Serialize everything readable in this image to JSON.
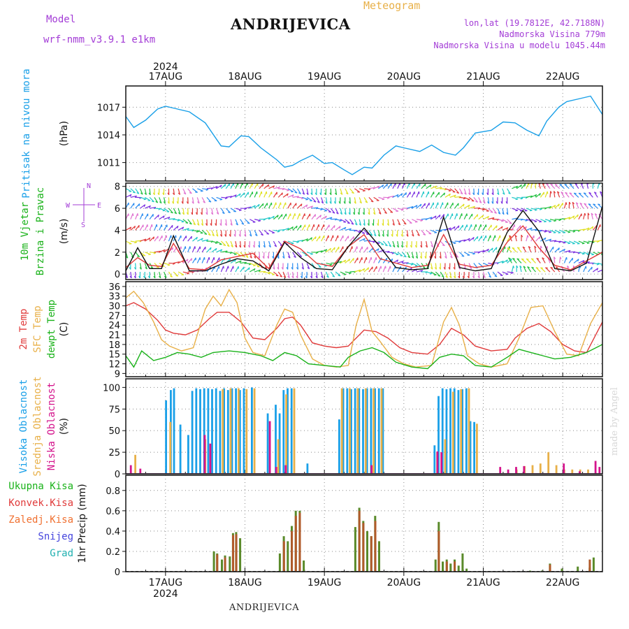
{
  "header": {
    "model_label": "Model",
    "model_name": "wrf-nmm_v3.9.1 e1km",
    "station": "ANDRIJEVICA",
    "meteogram_title": "Meteogram",
    "coords": "lon,lat (19.7812E, 42.7188N)",
    "altitude": "Nadmorska Visina 779m",
    "model_altitude": "Nadmorska Visina u modelu 1045.44m"
  },
  "footer": {
    "station": "ANDRIJEVICA",
    "credit": "made by Angel"
  },
  "time_axis": {
    "year": "2024",
    "day_labels": [
      "17AUG",
      "18AUG",
      "19AUG",
      "20AUG",
      "21AUG",
      "22AUG"
    ],
    "start_day": 16.5,
    "end_day": 22.5
  },
  "chart_data": [
    {
      "type": "line",
      "id": "pressure",
      "ylabel": "(hPa)",
      "side_labels": [
        {
          "text": "Pritisak na nivou mora",
          "color": "#1aa0e8"
        }
      ],
      "ylim": [
        1009,
        1019.3
      ],
      "yticks": [
        "1011",
        "1014",
        "1017"
      ],
      "series": [
        {
          "color": "#1aa0e8",
          "x": [
            16.5,
            16.6,
            16.75,
            16.9,
            17.0,
            17.15,
            17.3,
            17.5,
            17.7,
            17.8,
            17.95,
            18.05,
            18.2,
            18.4,
            18.5,
            18.6,
            18.7,
            18.85,
            19.0,
            19.1,
            19.25,
            19.35,
            19.5,
            19.6,
            19.75,
            19.9,
            20.0,
            20.2,
            20.35,
            20.5,
            20.65,
            20.75,
            20.9,
            21.1,
            21.25,
            21.4,
            21.55,
            21.7,
            21.8,
            21.95,
            22.05,
            22.2,
            22.35,
            22.5
          ],
          "y": [
            1016,
            1014.8,
            1015.6,
            1016.8,
            1017.1,
            1016.8,
            1016.5,
            1015.3,
            1012.8,
            1012.7,
            1013.9,
            1013.8,
            1012.6,
            1011.3,
            1010.5,
            1010.7,
            1011.2,
            1011.8,
            1010.9,
            1011.0,
            1010.2,
            1009.7,
            1010.5,
            1010.4,
            1011.8,
            1012.8,
            1012.6,
            1012.2,
            1012.9,
            1012.1,
            1011.8,
            1012.6,
            1014.2,
            1014.5,
            1015.4,
            1015.3,
            1014.5,
            1013.9,
            1015.5,
            1017.0,
            1017.6,
            1017.9,
            1018.2,
            1016.2
          ]
        }
      ]
    },
    {
      "type": "line",
      "id": "wind",
      "ylabel": "(m/s)",
      "side_labels": [
        {
          "text": "10m Vjetar",
          "color": "#19b219"
        },
        {
          "text": "Brzina i Pravac",
          "color": "#19b219"
        }
      ],
      "compass": {
        "n": "N",
        "s": "S",
        "e": "E",
        "w": "W"
      },
      "ylim": [
        -0.5,
        8.3
      ],
      "yticks": [
        "0",
        "2",
        "4",
        "6",
        "8"
      ],
      "series": [
        {
          "color": "#e03a3a",
          "x": [
            16.5,
            16.65,
            16.8,
            16.95,
            17.1,
            17.3,
            17.5,
            17.7,
            17.9,
            18.1,
            18.3,
            18.5,
            18.7,
            18.9,
            19.1,
            19.3,
            19.5,
            19.7,
            19.9,
            20.1,
            20.3,
            20.5,
            20.7,
            20.9,
            21.1,
            21.3,
            21.5,
            21.7,
            21.9,
            22.1,
            22.3,
            22.5
          ],
          "y": [
            0.6,
            1.5,
            0.8,
            0.7,
            2.8,
            0.5,
            0.4,
            1.3,
            1.6,
            1.9,
            0.5,
            3.0,
            2.3,
            1.0,
            0.7,
            2.5,
            3.6,
            1.4,
            1.0,
            0.6,
            0.8,
            3.6,
            0.9,
            0.6,
            0.8,
            2.9,
            4.4,
            2.4,
            0.8,
            0.4,
            1.2,
            2.0
          ]
        },
        {
          "color": "#111111",
          "x": [
            16.5,
            16.65,
            16.8,
            16.95,
            17.1,
            17.3,
            17.5,
            17.7,
            17.9,
            18.1,
            18.3,
            18.5,
            18.7,
            18.9,
            19.1,
            19.3,
            19.5,
            19.7,
            19.9,
            20.1,
            20.3,
            20.5,
            20.7,
            20.9,
            21.1,
            21.3,
            21.5,
            21.7,
            21.9,
            22.1,
            22.3,
            22.5
          ],
          "y": [
            0.3,
            2.4,
            0.5,
            0.5,
            3.5,
            0.3,
            0.3,
            0.9,
            1.4,
            1.2,
            0.3,
            2.9,
            1.5,
            0.5,
            0.4,
            2.5,
            4.2,
            2.5,
            0.6,
            0.4,
            0.5,
            5.2,
            0.6,
            0.3,
            0.5,
            3.8,
            5.8,
            3.9,
            0.5,
            0.3,
            1.0,
            6.2
          ]
        }
      ]
    },
    {
      "type": "line",
      "id": "temperature",
      "ylabel": "(C)",
      "side_labels": [
        {
          "text": "2m Temp",
          "color": "#e03a3a"
        },
        {
          "text": "SFC Temp",
          "color": "#e8b048"
        },
        {
          "text": "dewpt Temp",
          "color": "#19b219"
        }
      ],
      "ylim": [
        8.0,
        37.5
      ],
      "yticks": [
        "9",
        "12",
        "15",
        "18",
        "21",
        "24",
        "27",
        "30",
        "33",
        "36"
      ],
      "series": [
        {
          "color": "#e03a3a",
          "x": [
            16.5,
            16.6,
            16.75,
            16.9,
            17.0,
            17.1,
            17.25,
            17.4,
            17.55,
            17.65,
            17.8,
            17.95,
            18.1,
            18.25,
            18.4,
            18.5,
            18.6,
            18.7,
            18.85,
            19.0,
            19.15,
            19.3,
            19.4,
            19.5,
            19.65,
            19.8,
            19.95,
            20.1,
            20.3,
            20.45,
            20.6,
            20.75,
            20.9,
            21.1,
            21.3,
            21.4,
            21.55,
            21.7,
            21.85,
            22.0,
            22.15,
            22.3,
            22.5
          ],
          "y": [
            30,
            31.0,
            29.0,
            25.5,
            22.5,
            21.5,
            21.0,
            22.5,
            26,
            28,
            28,
            25,
            20,
            19.5,
            23,
            26,
            26.5,
            24,
            18.5,
            17.5,
            17,
            17.5,
            20,
            22.5,
            22,
            20,
            17,
            15.5,
            15.0,
            18,
            23,
            21,
            17.5,
            16.0,
            16.5,
            20,
            23,
            24.5,
            22,
            18,
            16,
            15.5,
            25
          ]
        },
        {
          "color": "#e8b048",
          "x": [
            16.5,
            16.6,
            16.72,
            16.85,
            16.95,
            17.05,
            17.2,
            17.35,
            17.5,
            17.6,
            17.7,
            17.8,
            17.9,
            18.0,
            18.1,
            18.25,
            18.4,
            18.5,
            18.6,
            18.7,
            18.85,
            19.0,
            19.15,
            19.3,
            19.4,
            19.5,
            19.6,
            19.7,
            19.85,
            20.0,
            20.15,
            20.35,
            20.5,
            20.6,
            20.7,
            20.8,
            20.95,
            21.1,
            21.3,
            21.45,
            21.6,
            21.75,
            21.9,
            22.05,
            22.2,
            22.35,
            22.5
          ],
          "y": [
            32.5,
            34.5,
            31,
            25,
            19.5,
            17.5,
            16,
            17,
            29,
            33,
            30,
            35,
            31,
            20,
            15.5,
            14.5,
            24,
            29,
            28,
            21,
            13.5,
            11.5,
            11,
            11.5,
            24,
            32,
            22,
            19,
            14,
            12,
            11,
            11.5,
            25,
            29.5,
            24,
            14.5,
            12,
            11,
            12,
            20,
            29.5,
            30,
            22,
            15,
            14.5,
            24.5,
            31
          ]
        },
        {
          "color": "#19b219",
          "x": [
            16.5,
            16.6,
            16.7,
            16.85,
            17.0,
            17.15,
            17.3,
            17.45,
            17.6,
            17.8,
            18.0,
            18.2,
            18.35,
            18.5,
            18.65,
            18.8,
            19.0,
            19.2,
            19.3,
            19.45,
            19.6,
            19.75,
            19.9,
            20.1,
            20.3,
            20.45,
            20.6,
            20.75,
            20.9,
            21.1,
            21.3,
            21.45,
            21.6,
            21.75,
            21.9,
            22.1,
            22.3,
            22.5
          ],
          "y": [
            14.5,
            11,
            16,
            13,
            14,
            15.5,
            15,
            14,
            15.5,
            16,
            15.5,
            14.5,
            13,
            15.5,
            14.5,
            12,
            11.5,
            11,
            14,
            16,
            17,
            15.5,
            12.5,
            11.0,
            10.5,
            14,
            15,
            14.5,
            11.5,
            11.0,
            14,
            16.5,
            15.5,
            14.5,
            13.5,
            14,
            15.5,
            18
          ]
        }
      ]
    },
    {
      "type": "bar",
      "id": "clouds",
      "ylabel": "(%)",
      "side_labels": [
        {
          "text": "Visoka Oblacnost",
          "color": "#1aa0e8"
        },
        {
          "text": "Srednja Oblacnost",
          "color": "#e8b048"
        },
        {
          "text": "Niska Oblacnost",
          "color": "#d4148c"
        }
      ],
      "ylim": [
        0,
        110
      ],
      "yticks": [
        "0",
        "25",
        "50",
        "75",
        "100"
      ],
      "series": [
        {
          "name": "Visoka Oblacnost",
          "color": "#1aa0e8",
          "x": [
            17.02,
            17.08,
            17.12,
            17.2,
            17.3,
            17.35,
            17.4,
            17.45,
            17.5,
            17.55,
            17.6,
            17.65,
            17.7,
            17.75,
            17.8,
            17.85,
            17.9,
            17.95,
            18.0,
            18.1,
            18.3,
            18.4,
            18.45,
            18.5,
            18.55,
            18.6,
            18.8,
            19.2,
            19.25,
            19.3,
            19.35,
            19.4,
            19.45,
            19.5,
            19.55,
            19.6,
            19.65,
            19.7,
            19.75,
            20.4,
            20.45,
            20.5,
            20.55,
            20.6,
            20.65,
            20.7,
            20.75,
            20.8,
            20.85,
            20.9
          ],
          "y": [
            85,
            97,
            99,
            57,
            45,
            96,
            99,
            98,
            99,
            99,
            98,
            99,
            96,
            99,
            97,
            99,
            99,
            97,
            99,
            100,
            70,
            80,
            70,
            97,
            99,
            99,
            12,
            63,
            99,
            99,
            98,
            99,
            99,
            98,
            99,
            99,
            99,
            99,
            99,
            33,
            90,
            99,
            98,
            99,
            99,
            97,
            98,
            99,
            61,
            60
          ]
        },
        {
          "name": "Srednja Oblacnost",
          "color": "#e8b048",
          "x": [
            16.62,
            17.06,
            17.5,
            17.72,
            17.82,
            17.92,
            18.02,
            18.12,
            18.42,
            18.52,
            18.62,
            19.22,
            19.32,
            19.42,
            19.52,
            19.62,
            19.72,
            20.42,
            20.52,
            20.62,
            20.72,
            20.82,
            20.92,
            21.42,
            21.52,
            21.62,
            21.72,
            21.82,
            21.92,
            22.02,
            22.12,
            22.22,
            22.32
          ],
          "y": [
            22,
            60,
            40,
            98,
            99,
            99,
            98,
            99,
            40,
            92,
            99,
            99,
            99,
            99,
            99,
            99,
            99,
            25,
            40,
            95,
            98,
            99,
            58,
            5,
            9,
            10,
            12,
            25,
            10,
            5,
            5,
            5,
            5
          ]
        },
        {
          "name": "Niska Oblacnost",
          "color": "#d4148c",
          "x": [
            16.55,
            16.67,
            17.48,
            17.55,
            18.3,
            18.38,
            18.5,
            19.58,
            20.41,
            20.46,
            21.2,
            21.3,
            21.4,
            21.5,
            22.0,
            22.2,
            22.4,
            22.45
          ],
          "y": [
            10,
            6,
            45,
            35,
            61,
            8,
            10,
            10,
            26,
            25,
            8,
            5,
            8,
            9,
            12,
            3,
            15,
            8
          ]
        }
      ]
    },
    {
      "type": "bar",
      "id": "precip",
      "ylabel": "1hr Precip (mm)",
      "side_labels": [
        {
          "text": "Ukupna Kisa",
          "color": "#19b219"
        },
        {
          "text": "Konvek.Kisa",
          "color": "#e03a3a"
        },
        {
          "text": "Zaledj.Kisa",
          "color": "#f07030"
        },
        {
          "text": "Snijeg",
          "color": "#4444dd"
        },
        {
          "text": "Grad",
          "color": "#20b0b0"
        }
      ],
      "ylim": [
        0,
        0.95
      ],
      "yticks": [
        "0",
        "0.2",
        "0.4",
        "0.6",
        "0.8"
      ],
      "series": [
        {
          "name": "Ukupna Kisa",
          "color": "#5a8a2a",
          "x": [
            17.62,
            17.66,
            17.72,
            17.76,
            17.82,
            17.86,
            17.9,
            17.95,
            18.45,
            18.5,
            18.55,
            18.6,
            18.65,
            18.7,
            18.75,
            19.4,
            19.45,
            19.5,
            19.55,
            19.6,
            19.65,
            19.7,
            20.41,
            20.45,
            20.5,
            20.55,
            20.6,
            20.65,
            20.7,
            20.75,
            20.8,
            21.6,
            21.75,
            21.85,
            22.0,
            22.2,
            22.35,
            22.4
          ],
          "y": [
            0.2,
            0.18,
            0.12,
            0.16,
            0.15,
            0.38,
            0.39,
            0.33,
            0.18,
            0.35,
            0.3,
            0.45,
            0.6,
            0.6,
            0.11,
            0.44,
            0.63,
            0.5,
            0.4,
            0.35,
            0.55,
            0.3,
            0.12,
            0.49,
            0.1,
            0.12,
            0.08,
            0.12,
            0.06,
            0.18,
            0.03,
            0.01,
            0.01,
            0.08,
            0.03,
            0.05,
            0.04,
            0.14
          ]
        },
        {
          "name": "Konvek.Kisa",
          "color": "#b05a2a",
          "x": [
            17.64,
            17.74,
            17.84,
            17.88,
            18.48,
            18.58,
            18.63,
            18.68,
            19.43,
            19.48,
            19.58,
            19.63,
            20.43,
            20.53,
            20.63,
            21.83,
            22.33
          ],
          "y": [
            0.17,
            0.14,
            0.36,
            0.37,
            0.3,
            0.4,
            0.55,
            0.58,
            0.6,
            0.48,
            0.35,
            0.5,
            0.4,
            0.1,
            0.1,
            0.07,
            0.12
          ]
        }
      ]
    }
  ]
}
